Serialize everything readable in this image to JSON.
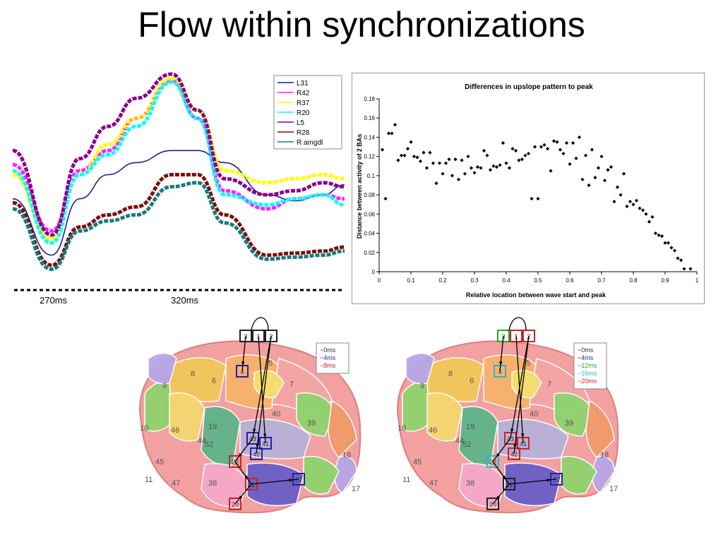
{
  "title": "Flow within synchronizations",
  "chart_data": [
    {
      "type": "line",
      "x_tick_labels": [
        "270ms",
        "320ms"
      ],
      "series": [
        {
          "name": "L31",
          "color": "#1e1e8c",
          "values": [
            0.38,
            0.1,
            0.38,
            0.5,
            0.56,
            0.62,
            0.62,
            0.56,
            0.4,
            0.37,
            0.4,
            0.45
          ]
        },
        {
          "name": "R42",
          "color": "#ff22ff",
          "values": [
            0.55,
            0.22,
            0.52,
            0.62,
            0.78,
            0.97,
            0.78,
            0.42,
            0.33,
            0.38,
            0.4,
            0.38
          ]
        },
        {
          "name": "R37",
          "color": "#ffff00",
          "values": [
            0.5,
            0.18,
            0.5,
            0.65,
            0.78,
            0.98,
            0.82,
            0.52,
            0.46,
            0.48,
            0.5,
            0.48
          ]
        },
        {
          "name": "R20",
          "color": "#00ffff",
          "values": [
            0.52,
            0.16,
            0.5,
            0.6,
            0.74,
            0.96,
            0.78,
            0.4,
            0.35,
            0.38,
            0.4,
            0.35
          ]
        },
        {
          "name": "L5",
          "color": "#8a008a",
          "values": [
            0.62,
            0.2,
            0.58,
            0.74,
            0.88,
            1.0,
            0.82,
            0.48,
            0.4,
            0.42,
            0.46,
            0.44
          ]
        },
        {
          "name": "R28",
          "color": "#7a1010",
          "values": [
            0.36,
            0.05,
            0.24,
            0.3,
            0.34,
            0.5,
            0.5,
            0.3,
            0.1,
            0.11,
            0.12,
            0.14
          ]
        },
        {
          "name": "R amgdl",
          "color": "#1a7a7a",
          "values": [
            0.33,
            0.03,
            0.22,
            0.27,
            0.3,
            0.44,
            0.46,
            0.26,
            0.08,
            0.09,
            0.1,
            0.12
          ]
        }
      ]
    },
    {
      "type": "scatter",
      "title": "Differences in upslope pattern to peak",
      "xlabel": "Relative location between wave start and peak",
      "ylabel": "Distance between activity of 2 BAs",
      "xlim": [
        0,
        1
      ],
      "ylim": [
        0,
        0.18
      ],
      "xticks": [
        "0",
        "0.1",
        "0.2",
        "0.3",
        "0.4",
        "0.5",
        "0.6",
        "0.7",
        "0.8",
        "0.9",
        "1"
      ],
      "yticks": [
        "0",
        "0.02",
        "0.04",
        "0.06",
        "0.08",
        "0.1",
        "0.12",
        "0.14",
        "0.16",
        "0.18"
      ],
      "points": [
        [
          0.01,
          0.127
        ],
        [
          0.02,
          0.076
        ],
        [
          0.03,
          0.144
        ],
        [
          0.04,
          0.144
        ],
        [
          0.05,
          0.153
        ],
        [
          0.06,
          0.116
        ],
        [
          0.07,
          0.121
        ],
        [
          0.08,
          0.121
        ],
        [
          0.09,
          0.128
        ],
        [
          0.1,
          0.135
        ],
        [
          0.11,
          0.12
        ],
        [
          0.12,
          0.119
        ],
        [
          0.13,
          0.115
        ],
        [
          0.14,
          0.124
        ],
        [
          0.15,
          0.108
        ],
        [
          0.16,
          0.124
        ],
        [
          0.17,
          0.113
        ],
        [
          0.18,
          0.092
        ],
        [
          0.19,
          0.113
        ],
        [
          0.2,
          0.102
        ],
        [
          0.21,
          0.113
        ],
        [
          0.22,
          0.117
        ],
        [
          0.23,
          0.1
        ],
        [
          0.24,
          0.117
        ],
        [
          0.25,
          0.096
        ],
        [
          0.26,
          0.116
        ],
        [
          0.27,
          0.102
        ],
        [
          0.28,
          0.12
        ],
        [
          0.29,
          0.108
        ],
        [
          0.3,
          0.103
        ],
        [
          0.31,
          0.109
        ],
        [
          0.32,
          0.108
        ],
        [
          0.33,
          0.126
        ],
        [
          0.34,
          0.121
        ],
        [
          0.35,
          0.106
        ],
        [
          0.36,
          0.11
        ],
        [
          0.37,
          0.109
        ],
        [
          0.38,
          0.111
        ],
        [
          0.39,
          0.134
        ],
        [
          0.4,
          0.113
        ],
        [
          0.41,
          0.108
        ],
        [
          0.42,
          0.128
        ],
        [
          0.43,
          0.126
        ],
        [
          0.44,
          0.116
        ],
        [
          0.45,
          0.117
        ],
        [
          0.46,
          0.121
        ],
        [
          0.47,
          0.123
        ],
        [
          0.48,
          0.076
        ],
        [
          0.49,
          0.13
        ],
        [
          0.5,
          0.076
        ],
        [
          0.51,
          0.13
        ],
        [
          0.52,
          0.132
        ],
        [
          0.53,
          0.128
        ],
        [
          0.54,
          0.105
        ],
        [
          0.55,
          0.136
        ],
        [
          0.56,
          0.135
        ],
        [
          0.57,
          0.127
        ],
        [
          0.58,
          0.123
        ],
        [
          0.59,
          0.134
        ],
        [
          0.6,
          0.112
        ],
        [
          0.61,
          0.134
        ],
        [
          0.62,
          0.118
        ],
        [
          0.63,
          0.14
        ],
        [
          0.64,
          0.096
        ],
        [
          0.65,
          0.121
        ],
        [
          0.66,
          0.09
        ],
        [
          0.67,
          0.127
        ],
        [
          0.68,
          0.098
        ],
        [
          0.69,
          0.108
        ],
        [
          0.7,
          0.12
        ],
        [
          0.71,
          0.095
        ],
        [
          0.72,
          0.106
        ],
        [
          0.73,
          0.109
        ],
        [
          0.74,
          0.073
        ],
        [
          0.75,
          0.088
        ],
        [
          0.76,
          0.08
        ],
        [
          0.77,
          0.102
        ],
        [
          0.78,
          0.068
        ],
        [
          0.79,
          0.073
        ],
        [
          0.8,
          0.07
        ],
        [
          0.81,
          0.074
        ],
        [
          0.82,
          0.066
        ],
        [
          0.83,
          0.064
        ],
        [
          0.84,
          0.06
        ],
        [
          0.85,
          0.052
        ],
        [
          0.86,
          0.057
        ],
        [
          0.87,
          0.04
        ],
        [
          0.88,
          0.038
        ],
        [
          0.89,
          0.037
        ],
        [
          0.9,
          0.03
        ],
        [
          0.91,
          0.03
        ],
        [
          0.92,
          0.025
        ],
        [
          0.93,
          0.022
        ],
        [
          0.94,
          0.014
        ],
        [
          0.95,
          0.012
        ],
        [
          0.96,
          0.003
        ],
        [
          0.98,
          0.003
        ]
      ]
    }
  ],
  "brain_left": {
    "legend": [
      "~0ms",
      "~4ms",
      "~8ms"
    ],
    "legend_colors": [
      "#333333",
      "#2222aa",
      "#cc2222"
    ],
    "regions": [
      "5",
      "6",
      "7",
      "8",
      "9",
      "10",
      "11",
      "17",
      "18",
      "19",
      "38",
      "39",
      "40",
      "44",
      "45",
      "46",
      "47",
      "52"
    ],
    "boxes": [
      {
        "label": "3",
        "color": "#222222"
      },
      {
        "label": "1",
        "color": "#222222"
      },
      {
        "label": "2",
        "color": "#222222"
      },
      {
        "label": "4",
        "color": "#2222aa"
      },
      {
        "label": "43",
        "color": "#2222aa"
      },
      {
        "label": "41",
        "color": "#2222aa"
      },
      {
        "label": "42",
        "color": "#2222aa"
      },
      {
        "label": "22",
        "color": "#cc2222"
      },
      {
        "label": "21",
        "color": "#cc2222"
      },
      {
        "label": "37",
        "color": "#2222aa"
      },
      {
        "label": "20",
        "color": "#cc2222"
      }
    ]
  },
  "brain_right": {
    "legend": [
      "~0ms",
      "~4ms",
      "~12ms",
      "~16ms",
      "~20ms"
    ],
    "legend_colors": [
      "#333333",
      "#2222aa",
      "#22aa22",
      "#22bbcc",
      "#cc2222"
    ],
    "regions": [
      "5",
      "6",
      "7",
      "8",
      "9",
      "10",
      "11",
      "17",
      "18",
      "19",
      "38",
      "39",
      "40",
      "44",
      "45",
      "46",
      "47",
      "52"
    ],
    "boxes": [
      {
        "label": "3",
        "color": "#22aa22"
      },
      {
        "label": "1",
        "color": "#cc2222"
      },
      {
        "label": "2",
        "color": "#cc2222"
      },
      {
        "label": "4",
        "color": "#22bbcc"
      },
      {
        "label": "43",
        "color": "#cc2222"
      },
      {
        "label": "41",
        "color": "#cc2222"
      },
      {
        "label": "42",
        "color": "#cc2222"
      },
      {
        "label": "22",
        "color": "#22bbcc"
      },
      {
        "label": "21",
        "color": "#222222"
      },
      {
        "label": "37",
        "color": "#2222aa"
      },
      {
        "label": "20",
        "color": "#222222"
      }
    ]
  }
}
